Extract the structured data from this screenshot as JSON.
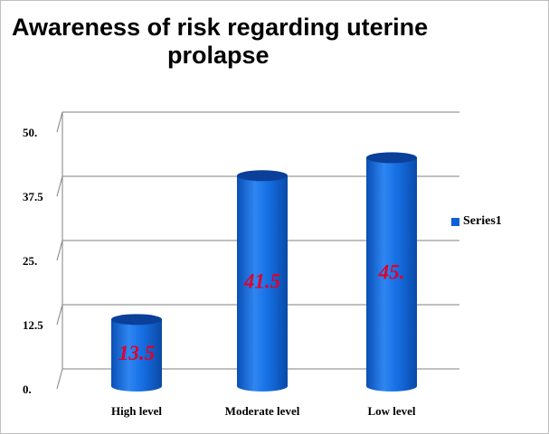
{
  "chart_data": {
    "type": "bar",
    "title_line1": "Awareness of risk regarding uterine",
    "title_line2": "prolapse",
    "categories": [
      "High level",
      "Moderate  level",
      "Low level"
    ],
    "series": [
      {
        "name": "Series1",
        "values": [
          13.5,
          41.5,
          45
        ]
      }
    ],
    "data_labels": [
      "13.5",
      "41.5",
      "45."
    ],
    "y_ticks": [
      "0.",
      "12.5",
      "25.",
      "37.5",
      "50."
    ],
    "ylim": [
      0,
      50
    ],
    "grid": true,
    "legend_position": "right",
    "bar_color": "#0b62d4",
    "data_label_color": "#e0002a"
  }
}
